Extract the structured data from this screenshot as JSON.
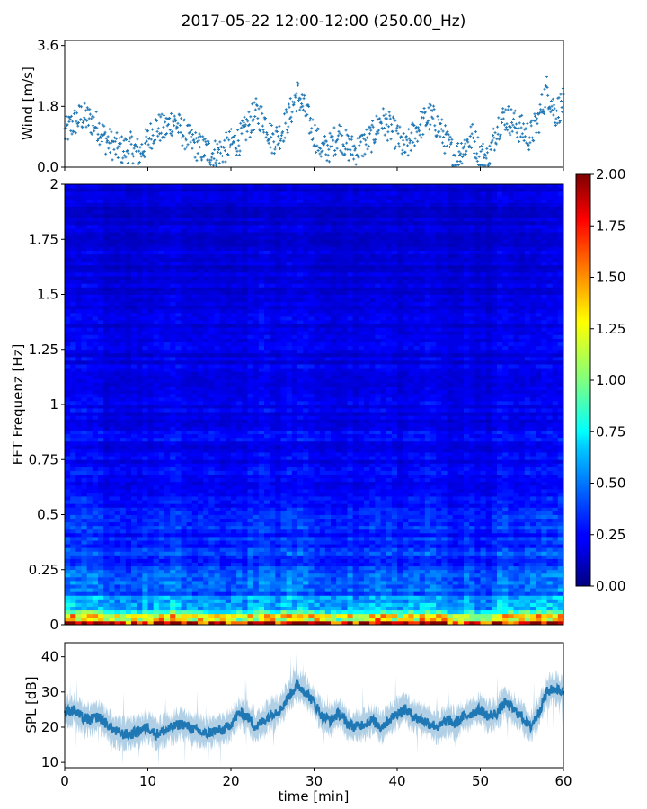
{
  "title": "2017-05-22 12:00-12:00 (250.00_Hz)",
  "chart_data": [
    {
      "type": "scatter",
      "panel": "wind",
      "ylabel": "Wind [m/s]",
      "xlim": [
        0,
        60
      ],
      "ylim": [
        0,
        3.75
      ],
      "yticks": [
        0.0,
        1.8,
        3.6
      ],
      "ytick_labels": [
        "0.0",
        "1.8",
        "3.6"
      ],
      "color": "#1f77b4",
      "x": [
        0,
        1,
        2,
        3,
        4,
        5,
        6,
        7,
        8,
        9,
        10,
        11,
        12,
        13,
        14,
        15,
        16,
        17,
        18,
        19,
        20,
        21,
        22,
        23,
        24,
        25,
        26,
        27,
        28,
        29,
        30,
        31,
        32,
        33,
        34,
        35,
        36,
        37,
        38,
        39,
        40,
        41,
        42,
        43,
        44,
        45,
        46,
        47,
        48,
        49,
        50,
        51,
        52,
        53,
        54,
        55,
        56,
        57,
        58,
        59,
        60
      ],
      "y": [
        1.0,
        1.3,
        1.5,
        1.4,
        1.2,
        0.8,
        0.6,
        0.5,
        0.6,
        0.4,
        0.8,
        1.2,
        1.1,
        1.4,
        1.1,
        0.8,
        0.6,
        0.5,
        0.4,
        0.5,
        0.7,
        0.8,
        1.2,
        1.6,
        1.4,
        0.8,
        1.0,
        1.5,
        2.2,
        1.6,
        1.0,
        0.5,
        0.6,
        1.0,
        0.6,
        0.5,
        0.7,
        0.9,
        1.4,
        1.2,
        0.9,
        0.5,
        1.0,
        1.3,
        1.5,
        1.2,
        0.7,
        0.3,
        0.6,
        0.9,
        0.4,
        0.2,
        1.2,
        1.5,
        1.3,
        1.1,
        0.9,
        1.4,
        2.3,
        1.6,
        1.9
      ]
    },
    {
      "type": "heatmap",
      "panel": "spectrogram",
      "ylabel": "FFT Frequenz [Hz]",
      "xlim": [
        0,
        60
      ],
      "ylim": [
        0,
        2
      ],
      "yticks": [
        0,
        0.25,
        0.5,
        0.75,
        1,
        1.25,
        1.5,
        1.75,
        2
      ],
      "ytick_labels": [
        "0",
        "0.25",
        "0.5",
        "0.75",
        "1",
        "1.25",
        "1.5",
        "1.75",
        "2"
      ],
      "colormap": "jet",
      "colorbar": {
        "vmin": 0.0,
        "vmax": 2.0,
        "ticks": [
          0.0,
          0.25,
          0.5,
          0.75,
          1.0,
          1.25,
          1.5,
          1.75,
          2.0
        ],
        "tick_labels": [
          "0.00",
          "0.25",
          "0.50",
          "0.75",
          "1.00",
          "1.25",
          "1.50",
          "1.75",
          "2.00"
        ]
      },
      "frequency_profile": {
        "freq": [
          0,
          0.02,
          0.04,
          0.06,
          0.1,
          0.2,
          0.35,
          0.6,
          1.0,
          1.5,
          2.0
        ],
        "level": [
          1.8,
          1.6,
          1.2,
          0.75,
          0.55,
          0.4,
          0.34,
          0.28,
          0.22,
          0.19,
          0.17
        ]
      }
    },
    {
      "type": "line",
      "panel": "spl",
      "ylabel": "SPL [dB]",
      "xlabel": "time [min]",
      "xlim": [
        0,
        60
      ],
      "ylim": [
        8.5,
        44
      ],
      "yticks": [
        10,
        20,
        30,
        40
      ],
      "ytick_labels": [
        "10",
        "20",
        "30",
        "40"
      ],
      "xticks": [
        0,
        10,
        20,
        30,
        40,
        50,
        60
      ],
      "xtick_labels": [
        "0",
        "10",
        "20",
        "30",
        "40",
        "50",
        "60"
      ],
      "color": "#1f77b4",
      "x": [
        0,
        1,
        2,
        3,
        4,
        5,
        6,
        7,
        8,
        9,
        10,
        11,
        12,
        13,
        14,
        15,
        16,
        17,
        18,
        19,
        20,
        21,
        22,
        23,
        24,
        25,
        26,
        27,
        28,
        29,
        30,
        31,
        32,
        33,
        34,
        35,
        36,
        37,
        38,
        39,
        40,
        41,
        42,
        43,
        44,
        45,
        46,
        47,
        48,
        49,
        50,
        51,
        52,
        53,
        54,
        55,
        56,
        57,
        58,
        59,
        60
      ],
      "y": [
        24,
        25,
        23,
        22,
        23,
        21,
        19,
        18,
        18,
        19,
        20,
        18,
        19,
        20,
        21,
        20,
        19,
        18,
        19,
        19,
        21,
        24,
        23,
        20,
        22,
        24,
        25,
        29,
        32,
        30,
        27,
        23,
        22,
        24,
        21,
        20,
        21,
        22,
        20,
        22,
        24,
        25,
        23,
        22,
        21,
        20,
        22,
        21,
        23,
        24,
        25,
        23,
        24,
        27,
        25,
        23,
        20,
        24,
        30,
        31,
        30
      ]
    }
  ]
}
